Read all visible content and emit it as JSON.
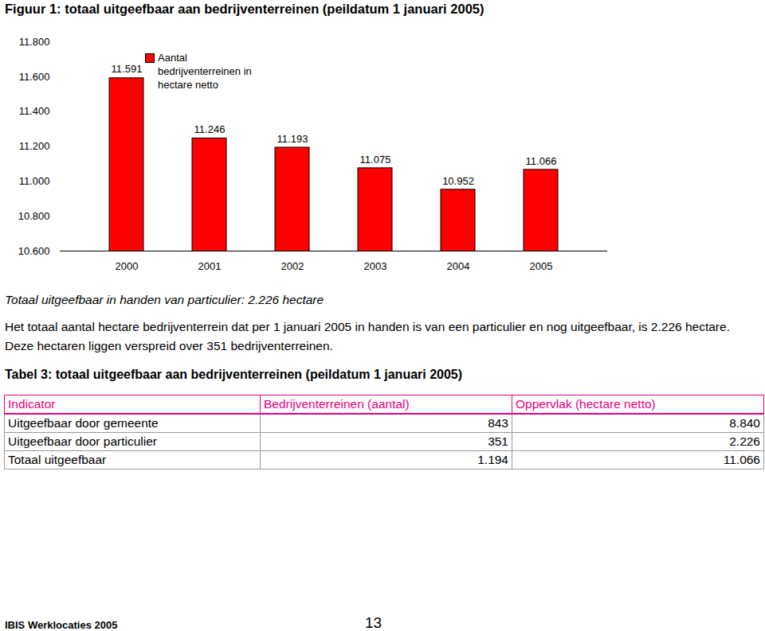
{
  "figure_title": "Figuur 1: totaal uitgeefbaar aan bedrijventerreinen (peildatum 1 januari 2005)",
  "chart_data": {
    "type": "bar",
    "categories": [
      "2000",
      "2001",
      "2002",
      "2003",
      "2004",
      "2005"
    ],
    "series": [
      {
        "name": "Aantal bedrijventerreinen in hectare netto",
        "color": "#ff0000",
        "values": [
          11591,
          11246,
          11193,
          11075,
          10952,
          11066
        ],
        "value_labels": [
          "11.591",
          "11.246",
          "11.193",
          "11.075",
          "10.952",
          "11.066"
        ]
      }
    ],
    "ylim": [
      10600,
      11800
    ],
    "yticks": [
      {
        "value": 10600,
        "label": "10.600"
      },
      {
        "value": 10800,
        "label": "10.800"
      },
      {
        "value": 11000,
        "label": "11.000"
      },
      {
        "value": 11200,
        "label": "11.200"
      },
      {
        "value": 11400,
        "label": "11.400"
      },
      {
        "value": 11600,
        "label": "11.600"
      },
      {
        "value": 11800,
        "label": "11.800"
      }
    ],
    "data_labels": true,
    "legend": "top",
    "grid": false
  },
  "subheading": "Totaal uitgeefbaar in handen van particulier: 2.226 hectare",
  "paragraph": "Het totaal aantal hectare bedrijventerrein dat per 1 januari 2005 in handen is van een particulier en nog uitgeefbaar, is 2.226 hectare. Deze hectaren liggen verspreid over 351 bedrijventerreinen.",
  "table_title": "Tabel 3: totaal uitgeefbaar aan bedrijventerreinen (peildatum 1 januari 2005)",
  "table": {
    "header": [
      "Indicator",
      "Bedrijventerreinen (aantal)",
      "Oppervlak (hectare netto)"
    ],
    "rows": [
      [
        "Uitgeefbaar door gemeente",
        "843",
        "8.840"
      ],
      [
        "Uitgeefbaar door particulier",
        "351",
        "2.226"
      ],
      [
        "Totaal uitgeefbaar",
        "1.194",
        "11.066"
      ]
    ]
  },
  "footer": {
    "left": "IBIS Werklocaties 2005",
    "page": "13"
  }
}
